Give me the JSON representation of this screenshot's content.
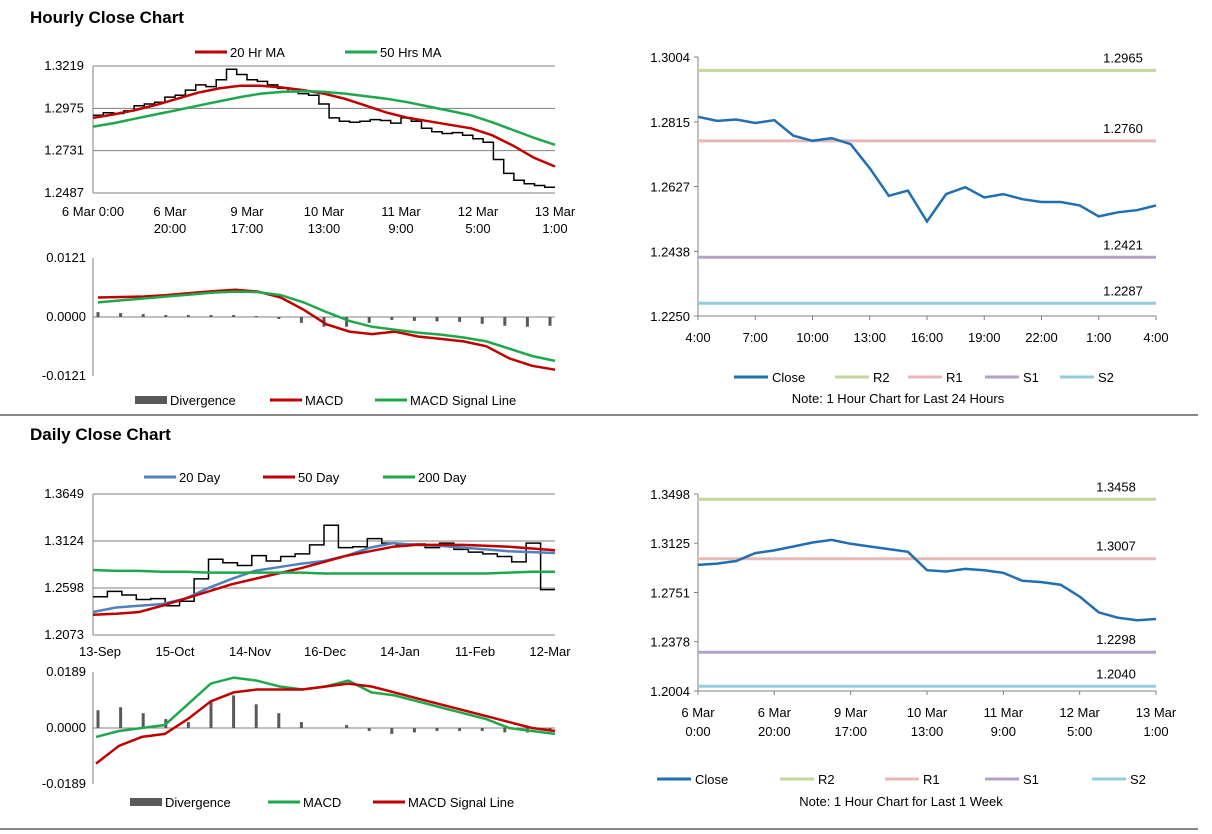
{
  "sections": {
    "hourly_title": "Hourly Close Chart",
    "daily_title": "Daily Close Chart"
  },
  "chart_data": [
    {
      "id": "hourly-price",
      "type": "line",
      "legend": [
        {
          "name": "20 Hr MA",
          "color": "#c00000"
        },
        {
          "name": "50 Hrs MA",
          "color": "#1fa84b"
        }
      ],
      "y_ticks": [
        "1.3219",
        "1.2975",
        "1.2731",
        "1.2487"
      ],
      "ylim": [
        1.2487,
        1.3219
      ],
      "x_ticks": [
        [
          "6 Mar 0:00",
          ""
        ],
        [
          "6 Mar",
          "20:00"
        ],
        [
          "9 Mar",
          "17:00"
        ],
        [
          "10 Mar",
          "13:00"
        ],
        [
          "11 Mar",
          "9:00"
        ],
        [
          "12 Mar",
          "5:00"
        ],
        [
          "13 Mar",
          "1:00"
        ]
      ],
      "close": [
        1.2935,
        1.295,
        1.2945,
        1.296,
        1.299,
        1.3,
        1.301,
        1.304,
        1.305,
        1.308,
        1.311,
        1.31,
        1.314,
        1.32,
        1.317,
        1.314,
        1.313,
        1.311,
        1.309,
        1.307,
        1.306,
        1.305,
        1.3,
        1.292,
        1.29,
        1.2895,
        1.29,
        1.291,
        1.2905,
        1.289,
        1.292,
        1.29,
        1.286,
        1.284,
        1.283,
        1.2835,
        1.282,
        1.28,
        1.278,
        1.268,
        1.26,
        1.256,
        1.254,
        1.253,
        1.252
      ],
      "series": [
        {
          "name": "20 Hr MA",
          "color": "#c00000",
          "values": [
            1.292,
            1.294,
            1.2965,
            1.2995,
            1.303,
            1.3065,
            1.309,
            1.3105,
            1.3105,
            1.3095,
            1.308,
            1.306,
            1.303,
            1.299,
            1.295,
            1.292,
            1.29,
            1.288,
            1.286,
            1.282,
            1.276,
            1.269,
            1.264
          ]
        },
        {
          "name": "50 Hrs MA",
          "color": "#1fa84b",
          "values": [
            1.287,
            1.289,
            1.2915,
            1.294,
            1.2965,
            1.299,
            1.3015,
            1.304,
            1.306,
            1.307,
            1.3075,
            1.307,
            1.306,
            1.3045,
            1.303,
            1.301,
            1.2985,
            1.296,
            1.2935,
            1.2895,
            1.285,
            1.2805,
            1.2765
          ]
        }
      ]
    },
    {
      "id": "hourly-macd",
      "type": "line",
      "y_ticks": [
        "0.0121",
        "0.0000",
        "-0.0121"
      ],
      "ylim": [
        -0.0121,
        0.0121
      ],
      "legend": [
        {
          "name": "Divergence",
          "color": "#595959"
        },
        {
          "name": "MACD",
          "color": "#c00000"
        },
        {
          "name": "MACD Signal Line",
          "color": "#1fa84b"
        }
      ],
      "series": [
        {
          "name": "MACD",
          "color": "#c00000",
          "values": [
            0.004,
            0.0041,
            0.0042,
            0.0045,
            0.0049,
            0.0053,
            0.0056,
            0.0052,
            0.004,
            0.0015,
            -0.0015,
            -0.003,
            -0.0035,
            -0.003,
            -0.004,
            -0.0045,
            -0.005,
            -0.006,
            -0.0085,
            -0.01,
            -0.0108
          ]
        },
        {
          "name": "MACD Signal Line",
          "color": "#1fa84b",
          "values": [
            0.003,
            0.0034,
            0.0038,
            0.0042,
            0.0046,
            0.005,
            0.0052,
            0.0051,
            0.0045,
            0.003,
            0.001,
            -0.0008,
            -0.002,
            -0.0026,
            -0.0032,
            -0.0036,
            -0.0042,
            -0.005,
            -0.0065,
            -0.008,
            -0.009
          ]
        }
      ],
      "divergence": [
        0.001,
        0.0008,
        0.0006,
        0.0004,
        0.0004,
        0.0004,
        0.0004,
        0.0002,
        -0.0004,
        -0.0012,
        -0.002,
        -0.002,
        -0.0012,
        -0.0006,
        -0.0008,
        -0.0009,
        -0.001,
        -0.0014,
        -0.0018,
        -0.002,
        -0.0018
      ]
    },
    {
      "id": "hourly-24h",
      "type": "line",
      "y_ticks": [
        "1.3004",
        "1.2815",
        "1.2627",
        "1.2438",
        "1.2250"
      ],
      "ylim": [
        1.225,
        1.3004
      ],
      "x_ticks": [
        "4:00",
        "7:00",
        "10:00",
        "13:00",
        "16:00",
        "19:00",
        "22:00",
        "1:00",
        "4:00"
      ],
      "close": [
        1.283,
        1.2818,
        1.2822,
        1.2812,
        1.282,
        1.2775,
        1.276,
        1.2768,
        1.275,
        1.268,
        1.26,
        1.2615,
        1.2525,
        1.2605,
        1.2625,
        1.2595,
        1.2605,
        1.259,
        1.2582,
        1.2582,
        1.2572,
        1.254,
        1.2552,
        1.2558,
        1.2572
      ],
      "levels": [
        {
          "name": "R2",
          "value": 1.2965,
          "label": "1.2965",
          "color": "#c3d69b"
        },
        {
          "name": "R1",
          "value": 1.276,
          "label": "1.2760",
          "color": "#e6b9b8"
        },
        {
          "name": "S1",
          "value": 1.2421,
          "label": "1.2421",
          "color": "#b3a2c7"
        },
        {
          "name": "S2",
          "value": 1.2287,
          "label": "1.2287",
          "color": "#93cddd"
        }
      ],
      "legend": [
        {
          "name": "Close",
          "color": "#1f6fb2"
        },
        {
          "name": "R2",
          "color": "#c3d69b"
        },
        {
          "name": "R1",
          "color": "#e6b9b8"
        },
        {
          "name": "S1",
          "color": "#b3a2c7"
        },
        {
          "name": "S2",
          "color": "#93cddd"
        }
      ],
      "note": "Note: 1 Hour Chart for Last 24 Hours"
    },
    {
      "id": "daily-price",
      "type": "line",
      "legend": [
        {
          "name": "20 Day",
          "color": "#4f81bd"
        },
        {
          "name": "50 Day",
          "color": "#c00000"
        },
        {
          "name": "200 Day",
          "color": "#1fa84b"
        }
      ],
      "y_ticks": [
        "1.3649",
        "1.3124",
        "1.2598",
        "1.2073"
      ],
      "ylim": [
        1.2073,
        1.3649
      ],
      "x_ticks": [
        "13-Sep",
        "15-Oct",
        "14-Nov",
        "16-Dec",
        "14-Jan",
        "11-Feb",
        "12-Mar"
      ],
      "close": [
        1.25,
        1.256,
        1.252,
        1.247,
        1.248,
        1.24,
        1.245,
        1.27,
        1.292,
        1.288,
        1.285,
        1.296,
        1.29,
        1.295,
        1.298,
        1.308,
        1.33,
        1.305,
        1.306,
        1.315,
        1.31,
        1.308,
        1.309,
        1.305,
        1.31,
        1.303,
        1.3,
        1.298,
        1.295,
        1.289,
        1.31,
        1.258
      ],
      "series": [
        {
          "name": "20 Day",
          "color": "#4f81bd",
          "values": [
            1.233,
            1.238,
            1.24,
            1.242,
            1.248,
            1.26,
            1.27,
            1.279,
            1.283,
            1.287,
            1.29,
            1.296,
            1.305,
            1.31,
            1.308,
            1.307,
            1.305,
            1.303,
            1.301,
            1.3,
            1.299
          ]
        },
        {
          "name": "50 Day",
          "color": "#c00000",
          "values": [
            1.23,
            1.231,
            1.233,
            1.24,
            1.248,
            1.256,
            1.264,
            1.27,
            1.276,
            1.282,
            1.289,
            1.296,
            1.301,
            1.306,
            1.308,
            1.308,
            1.308,
            1.307,
            1.306,
            1.304,
            1.302
          ]
        },
        {
          "name": "200 Day",
          "color": "#1fa84b",
          "values": [
            1.28,
            1.279,
            1.279,
            1.278,
            1.278,
            1.277,
            1.277,
            1.277,
            1.277,
            1.277,
            1.276,
            1.276,
            1.276,
            1.276,
            1.276,
            1.276,
            1.276,
            1.276,
            1.277,
            1.278,
            1.278
          ]
        }
      ]
    },
    {
      "id": "daily-macd",
      "type": "line",
      "y_ticks": [
        "0.0189",
        "0.0000",
        "-0.0189"
      ],
      "ylim": [
        -0.0189,
        0.0189
      ],
      "legend": [
        {
          "name": "Divergence",
          "color": "#595959"
        },
        {
          "name": "MACD",
          "color": "#1fa84b"
        },
        {
          "name": "MACD Signal Line",
          "color": "#c00000"
        }
      ],
      "series": [
        {
          "name": "MACD",
          "color": "#1fa84b",
          "values": [
            -0.003,
            -0.001,
            0.0,
            0.001,
            0.008,
            0.015,
            0.017,
            0.016,
            0.014,
            0.013,
            0.014,
            0.016,
            0.012,
            0.011,
            0.009,
            0.007,
            0.005,
            0.003,
            0.0,
            -0.001,
            -0.002
          ]
        },
        {
          "name": "MACD Signal Line",
          "color": "#c00000",
          "values": [
            -0.012,
            -0.006,
            -0.003,
            -0.002,
            0.003,
            0.009,
            0.012,
            0.013,
            0.013,
            0.013,
            0.014,
            0.015,
            0.014,
            0.012,
            0.01,
            0.008,
            0.006,
            0.004,
            0.002,
            0.0,
            -0.001
          ]
        }
      ],
      "divergence": [
        0.006,
        0.007,
        0.005,
        0.003,
        0.002,
        0.009,
        0.011,
        0.008,
        0.005,
        0.002,
        0.0,
        0.001,
        -0.001,
        -0.002,
        -0.0015,
        -0.001,
        -0.001,
        -0.001,
        -0.0015,
        -0.0015,
        -0.001
      ]
    },
    {
      "id": "daily-week",
      "type": "line",
      "y_ticks": [
        "1.3498",
        "1.3125",
        "1.2751",
        "1.2378",
        "1.2004"
      ],
      "ylim": [
        1.2004,
        1.3498
      ],
      "x_ticks": [
        [
          "6 Mar",
          "0:00"
        ],
        [
          "6 Mar",
          "20:00"
        ],
        [
          "9 Mar",
          "17:00"
        ],
        [
          "10 Mar",
          "13:00"
        ],
        [
          "11 Mar",
          "9:00"
        ],
        [
          "12 Mar",
          "5:00"
        ],
        [
          "13 Mar",
          "1:00"
        ]
      ],
      "close": [
        1.296,
        1.297,
        1.299,
        1.305,
        1.307,
        1.31,
        1.313,
        1.315,
        1.312,
        1.31,
        1.308,
        1.306,
        1.292,
        1.291,
        1.293,
        1.292,
        1.29,
        1.284,
        1.283,
        1.281,
        1.272,
        1.26,
        1.256,
        1.254,
        1.255
      ],
      "levels": [
        {
          "name": "R2",
          "value": 1.3458,
          "label": "1.3458",
          "color": "#c3d69b"
        },
        {
          "name": "R1",
          "value": 1.3007,
          "label": "1.3007",
          "color": "#e6b9b8"
        },
        {
          "name": "S1",
          "value": 1.2298,
          "label": "1.2298",
          "color": "#b3a2c7"
        },
        {
          "name": "S2",
          "value": 1.204,
          "label": "1.2040",
          "color": "#93cddd"
        }
      ],
      "legend": [
        {
          "name": "Close",
          "color": "#1f6fb2"
        },
        {
          "name": "R2",
          "color": "#c3d69b"
        },
        {
          "name": "R1",
          "color": "#e6b9b8"
        },
        {
          "name": "S1",
          "color": "#b3a2c7"
        },
        {
          "name": "S2",
          "color": "#93cddd"
        }
      ],
      "note": "Note: 1 Hour Chart for Last 1 Week"
    }
  ]
}
